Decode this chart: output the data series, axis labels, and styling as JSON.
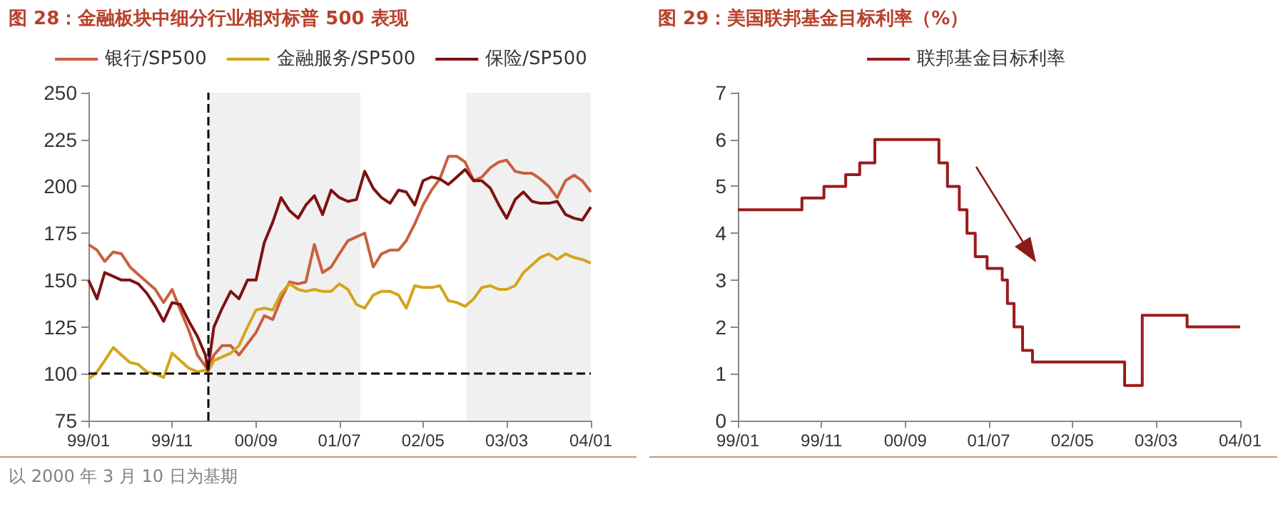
{
  "chart_data": [
    {
      "type": "line",
      "title": "图 28：金融板块中细分行业相对标普 500 表现",
      "annotations": [
        "以 2000 年 3 月 10 日为基期"
      ],
      "x": [
        "1999-01",
        "1999-02",
        "1999-03",
        "1999-04",
        "1999-05",
        "1999-06",
        "1999-07",
        "1999-08",
        "1999-09",
        "1999-10",
        "1999-11",
        "1999-12",
        "2000-01",
        "2000-02",
        "2000-03",
        "2000-03-10",
        "2000-04",
        "2000-05",
        "2000-06",
        "2000-07",
        "2000-08",
        "2000-09",
        "2000-10",
        "2000-11",
        "2000-12",
        "2001-01",
        "2001-02",
        "2001-03",
        "2001-04",
        "2001-05",
        "2001-06",
        "2001-07",
        "2001-08",
        "2001-09",
        "2001-10",
        "2001-11",
        "2001-12",
        "2002-01",
        "2002-02",
        "2002-03",
        "2002-04",
        "2002-05",
        "2002-06",
        "2002-07",
        "2002-08",
        "2002-09",
        "2002-10",
        "2002-11",
        "2002-12",
        "2003-01",
        "2003-02",
        "2003-03",
        "2003-04",
        "2003-05",
        "2003-06",
        "2003-07",
        "2003-08",
        "2003-09",
        "2003-10",
        "2003-11",
        "2003-12",
        "2004-01"
      ],
      "series": [
        {
          "name": "银行/SP500",
          "color": "#c8603f",
          "values": [
            169,
            166,
            160,
            165,
            164,
            157,
            153,
            149,
            145,
            138,
            145,
            134,
            123,
            110,
            104,
            102,
            110,
            115,
            115,
            110,
            116,
            122,
            131,
            129,
            140,
            149,
            148,
            149,
            169,
            154,
            157,
            164,
            171,
            173,
            175,
            157,
            164,
            166,
            166,
            171,
            180,
            190,
            198,
            204,
            216,
            216,
            213,
            203,
            205,
            210,
            213,
            214,
            208,
            207,
            207,
            204,
            200,
            194,
            203,
            206,
            203,
            197
          ]
        },
        {
          "name": "金融服务/SP500",
          "color": "#d4a51a",
          "values": [
            97,
            101,
            107,
            114,
            110,
            106,
            105,
            101,
            100,
            98,
            111,
            107,
            103,
            101,
            102,
            101,
            107,
            109,
            111,
            115,
            125,
            134,
            135,
            134,
            143,
            148,
            145,
            144,
            145,
            144,
            144,
            148,
            145,
            137,
            135,
            142,
            144,
            144,
            142,
            135,
            147,
            146,
            146,
            147,
            139,
            138,
            136,
            140,
            146,
            147,
            145,
            145,
            147,
            154,
            158,
            162,
            164,
            161,
            164,
            162,
            161,
            159
          ]
        },
        {
          "name": "保险/SP500",
          "color": "#7d1212",
          "values": [
            150,
            140,
            154,
            152,
            150,
            150,
            148,
            143,
            136,
            128,
            138,
            137,
            128,
            120,
            110,
            102,
            125,
            135,
            144,
            140,
            150,
            150,
            170,
            181,
            194,
            187,
            183,
            190,
            195,
            185,
            198,
            194,
            192,
            193,
            208,
            199,
            194,
            191,
            198,
            197,
            190,
            203,
            205,
            204,
            201,
            205,
            209,
            203,
            203,
            199,
            190,
            183,
            193,
            197,
            192,
            191,
            191,
            192,
            185,
            183,
            182,
            189
          ]
        }
      ],
      "xlim": [
        "1999-01",
        "2004-01"
      ],
      "xticks": [
        {
          "value": "1999-01",
          "label": "99/01"
        },
        {
          "value": "1999-11",
          "label": "99/11"
        },
        {
          "value": "2000-09",
          "label": "00/09"
        },
        {
          "value": "2001-07",
          "label": "01/07"
        },
        {
          "value": "2002-05",
          "label": "02/05"
        },
        {
          "value": "2003-03",
          "label": "03/03"
        },
        {
          "value": "2004-01",
          "label": "04/01"
        }
      ],
      "ylim": [
        75,
        250
      ],
      "yticks": [
        75,
        100,
        125,
        150,
        175,
        200,
        225,
        250
      ],
      "ref_lines": [
        {
          "axis": "x",
          "value": "2000-03-10",
          "label": null,
          "color": "#000000",
          "line_style": "dashed"
        },
        {
          "axis": "y",
          "value": 100,
          "label": null,
          "color": "#000000",
          "line_style": "dashed"
        }
      ],
      "bands": [
        {
          "axis": "x",
          "from": "2000-03-10",
          "to": "2001-09-15",
          "label": null,
          "color": "#f0f0f0"
        },
        {
          "axis": "x",
          "from": "2002-10-06",
          "to": "2004-01",
          "label": null,
          "color": "#f0f0f0"
        }
      ],
      "grid": false,
      "legend": "top",
      "marker": "none"
    },
    {
      "type": "step",
      "title": "图 29：美国联邦基金目标利率（%）",
      "x": [
        "1999-01-01",
        "1999-08-22",
        "1999-11-10",
        "2000-01-28",
        "2000-03-19",
        "2000-05-13",
        "2001-01-01",
        "2001-02-01",
        "2001-03-16",
        "2001-04-13",
        "2001-05-13",
        "2001-06-25",
        "2001-08-19",
        "2001-09-07",
        "2001-10-01",
        "2001-11-01",
        "2001-12-07",
        "2002-11-07",
        "2003-01-10",
        "2003-06-22",
        "2004-01-01"
      ],
      "series": [
        {
          "name": "联邦基金目标利率",
          "color": "#9b1b1b",
          "values": [
            4.5,
            4.75,
            5.0,
            5.25,
            5.5,
            6.0,
            5.5,
            5.0,
            4.5,
            4.0,
            3.5,
            3.25,
            3.0,
            2.5,
            2.0,
            1.5,
            1.25,
            0.75,
            2.25,
            2.0,
            2.0
          ]
        }
      ],
      "xlim": [
        "1999-01",
        "2004-01"
      ],
      "xticks": [
        {
          "value": "1999-01",
          "label": "99/01"
        },
        {
          "value": "1999-11",
          "label": "99/11"
        },
        {
          "value": "2000-09",
          "label": "00/09"
        },
        {
          "value": "2001-07",
          "label": "01/07"
        },
        {
          "value": "2002-05",
          "label": "02/05"
        },
        {
          "value": "2003-03",
          "label": "03/03"
        },
        {
          "value": "2004-01",
          "label": "04/01"
        }
      ],
      "ylim": [
        0,
        7
      ],
      "yticks": [
        0,
        1,
        2,
        3,
        4,
        5,
        6,
        7
      ],
      "grid": false,
      "legend": "top",
      "marker": "none"
    }
  ]
}
